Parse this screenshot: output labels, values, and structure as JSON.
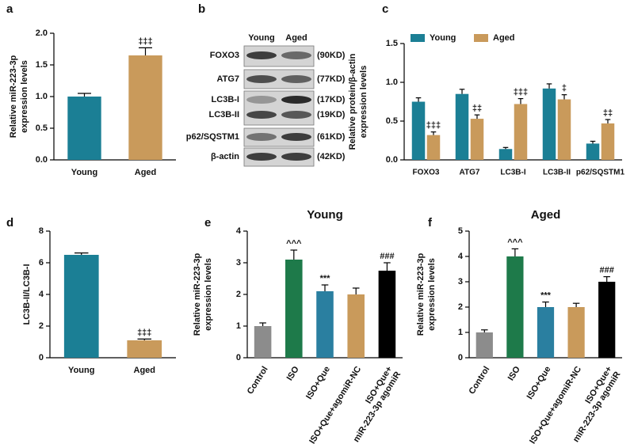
{
  "chart_data": [
    {
      "panel_label": "a",
      "type": "bar",
      "ylabel": [
        "Relative miR-223-3p",
        "expression levels"
      ],
      "categories": [
        "Young",
        "Aged"
      ],
      "values": [
        1.0,
        1.65
      ],
      "errors": [
        0.05,
        0.12
      ],
      "colors": [
        "#1b7f95",
        "#c99a5b"
      ],
      "annotations": [
        null,
        "‡‡‡"
      ],
      "ylim": [
        0,
        2
      ],
      "yticks": [
        {
          "value": 0,
          "label": "0.0"
        },
        {
          "value": 0.5,
          "label": "0.5"
        },
        {
          "value": 1,
          "label": "1.0"
        },
        {
          "value": 1.5,
          "label": "1.5"
        },
        {
          "value": 2,
          "label": "2.0"
        }
      ]
    },
    {
      "panel_label": "c",
      "type": "grouped_bar",
      "ylabel": [
        "Relative protein/β-actin",
        "expression levels"
      ],
      "categories": [
        "FOXO3",
        "ATG7",
        "LC3B-I",
        "LC3B-II",
        "p62/SQSTM1"
      ],
      "legend": "top-left",
      "series": [
        {
          "name": "Young",
          "color": "#1b7f95",
          "values": [
            0.75,
            0.85,
            0.14,
            0.92,
            0.21
          ],
          "errors": [
            0.05,
            0.06,
            0.02,
            0.06,
            0.03
          ],
          "annotations": [
            null,
            null,
            null,
            null,
            null
          ]
        },
        {
          "name": "Aged",
          "color": "#c99a5b",
          "values": [
            0.32,
            0.53,
            0.72,
            0.78,
            0.47
          ],
          "errors": [
            0.04,
            0.05,
            0.07,
            0.06,
            0.05
          ],
          "annotations": [
            "‡‡‡",
            "‡‡",
            "‡‡‡",
            "‡",
            "‡‡"
          ]
        }
      ],
      "ylim": [
        0,
        1.5
      ],
      "yticks": [
        {
          "value": 0,
          "label": "0.0"
        },
        {
          "value": 0.5,
          "label": "0.5"
        },
        {
          "value": 1,
          "label": "1.0"
        },
        {
          "value": 1.5,
          "label": "1.5"
        }
      ]
    },
    {
      "panel_label": "d",
      "type": "bar",
      "ylabel": [
        "LC3B-II/LC3B-I"
      ],
      "categories": [
        "Young",
        "Aged"
      ],
      "values": [
        6.5,
        1.1
      ],
      "errors": [
        0.12,
        0.08
      ],
      "colors": [
        "#1b7f95",
        "#c99a5b"
      ],
      "annotations": [
        null,
        "‡‡‡"
      ],
      "ylim": [
        0,
        8
      ],
      "yticks": [
        0,
        2,
        4,
        6,
        8
      ]
    },
    {
      "panel_label": "e",
      "type": "bar",
      "title": "Young",
      "ylabel": [
        "Relative miR-223-3p",
        "expression levels"
      ],
      "categories": [
        [
          "Control"
        ],
        [
          "ISO"
        ],
        [
          "ISO+Que"
        ],
        [
          "ISO+Que+agomiR-NC"
        ],
        [
          "ISO+Que+",
          "miR-223-3p agomiR"
        ]
      ],
      "values": [
        1.0,
        3.1,
        2.1,
        2.0,
        2.75
      ],
      "errors": [
        0.1,
        0.3,
        0.2,
        0.2,
        0.25
      ],
      "colors": [
        "#8c8c8c",
        "#1e7a4a",
        "#2a7fa0",
        "#c99a5b",
        "#000000"
      ],
      "annotations": [
        null,
        "^^^",
        "***",
        null,
        "###"
      ],
      "ylim": [
        0,
        4
      ],
      "yticks": [
        0,
        1,
        2,
        3,
        4
      ]
    },
    {
      "panel_label": "f",
      "type": "bar",
      "title": "Aged",
      "ylabel": [
        "Relative miR-223-3p",
        "expression levels"
      ],
      "categories": [
        [
          "Control"
        ],
        [
          "ISO"
        ],
        [
          "ISO+Que"
        ],
        [
          "ISO+Que+agomiR-NC"
        ],
        [
          "ISO+Que+",
          "miR-223-3p agomiR"
        ]
      ],
      "values": [
        1.0,
        4.0,
        2.0,
        2.0,
        3.0
      ],
      "errors": [
        0.1,
        0.3,
        0.2,
        0.15,
        0.2
      ],
      "colors": [
        "#8c8c8c",
        "#1e7a4a",
        "#2a7fa0",
        "#c99a5b",
        "#000000"
      ],
      "annotations": [
        null,
        "^^^",
        "***",
        null,
        "###"
      ],
      "ylim": [
        0,
        5
      ],
      "yticks": [
        0,
        1,
        2,
        3,
        4,
        5
      ]
    }
  ],
  "blot": {
    "panel_label": "b",
    "columns": [
      "Young",
      "Aged"
    ],
    "rows": [
      {
        "protein": "FOXO3",
        "weight": "(90KD)"
      },
      {
        "protein": "ATG7",
        "weight": "(77KD)"
      },
      {
        "protein": "LC3B-I",
        "weight": "(17KD)"
      },
      {
        "protein": "LC3B-II",
        "weight": "(19KD)"
      },
      {
        "protein": "p62/SQSTM1",
        "weight": "(61KD)"
      },
      {
        "protein": "β-actin",
        "weight": "(42KD)"
      }
    ]
  }
}
